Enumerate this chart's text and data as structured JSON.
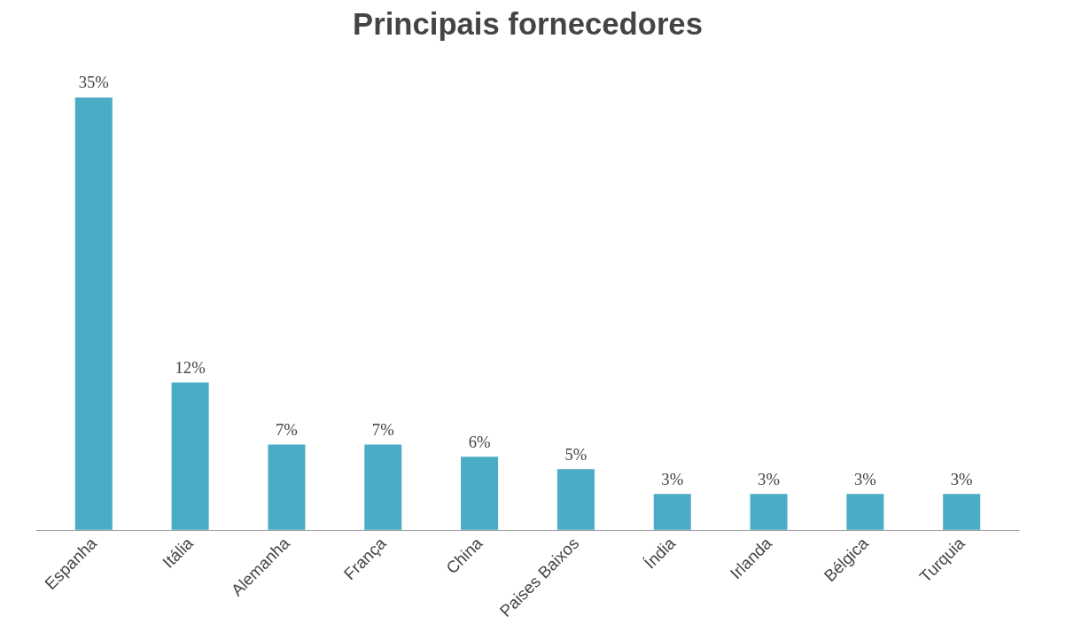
{
  "chart_data": {
    "type": "bar",
    "title": "Principais fornecedores",
    "categories": [
      "Espanha",
      "Itália",
      "Alemanha",
      "França",
      "China",
      "Paises Baixos",
      "Índia",
      "Irlanda",
      "Bélgica",
      "Turquia"
    ],
    "values": [
      35,
      12,
      7,
      7,
      6,
      5,
      3,
      3,
      3,
      3
    ],
    "value_labels": [
      "35%",
      "12%",
      "7%",
      "7%",
      "6%",
      "5%",
      "3%",
      "3%",
      "3%",
      "3%"
    ],
    "color": "#4bacc6"
  }
}
